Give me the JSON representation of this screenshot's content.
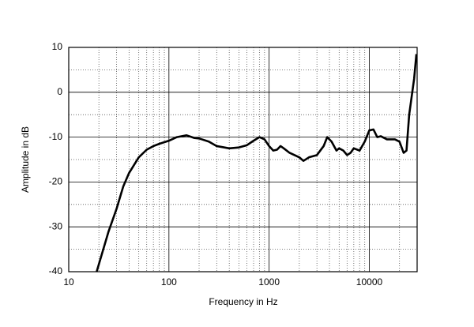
{
  "chart_data": {
    "type": "line",
    "x_label": "Frequency in Hz",
    "y_label": "Amplitude in dB",
    "x_scale": "log",
    "xlim": [
      10,
      30000
    ],
    "ylim": [
      -40,
      10
    ],
    "xticks": [
      10,
      100,
      1000,
      10000
    ],
    "yticks": [
      10,
      0,
      -10,
      -20,
      -30,
      -40
    ],
    "x_minor_ticks": [
      20,
      30,
      40,
      50,
      60,
      70,
      80,
      90,
      200,
      300,
      400,
      500,
      600,
      700,
      800,
      900,
      2000,
      3000,
      4000,
      5000,
      6000,
      7000,
      8000,
      9000,
      20000
    ],
    "y_minor_ticks": [
      5,
      -5,
      -15,
      -25,
      -35
    ],
    "grid": true,
    "color": "#000000",
    "x": [
      19,
      25,
      30,
      35,
      40,
      50,
      60,
      70,
      80,
      100,
      120,
      150,
      180,
      200,
      250,
      300,
      400,
      500,
      600,
      700,
      800,
      900,
      1000,
      1100,
      1200,
      1300,
      1400,
      1600,
      2000,
      2200,
      2500,
      3000,
      3500,
      3800,
      4200,
      4700,
      5000,
      5500,
      6000,
      6500,
      7000,
      8000,
      9000,
      10000,
      11000,
      12000,
      13000,
      15000,
      18000,
      20000,
      22000,
      23500,
      25000,
      28000,
      29500
    ],
    "values": [
      -40,
      -31,
      -26,
      -21,
      -18,
      -14.5,
      -12.8,
      -12,
      -11.5,
      -10.8,
      -10,
      -9.6,
      -10.2,
      -10.3,
      -11,
      -12,
      -12.5,
      -12.3,
      -11.8,
      -10.8,
      -10,
      -10.5,
      -12,
      -13,
      -12.8,
      -12,
      -12.5,
      -13.5,
      -14.5,
      -15.3,
      -14.5,
      -14,
      -12,
      -10,
      -11,
      -13,
      -12.5,
      -13,
      -14,
      -13.5,
      -12.5,
      -13,
      -11,
      -8.5,
      -8.3,
      -10,
      -9.8,
      -10.5,
      -10.5,
      -11,
      -13.5,
      -13,
      -5,
      3,
      8.5
    ]
  }
}
